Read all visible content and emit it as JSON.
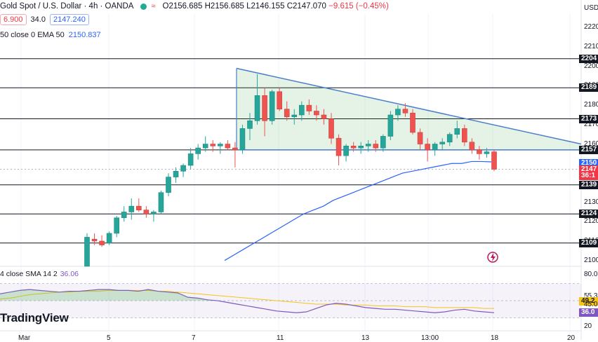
{
  "header": {
    "symbol": "Gold Spot / U.S. Dollar · 4h · OANDA",
    "open": "O2156.685",
    "high": "H2156.685",
    "low": "L2146.155",
    "close": "C2147.070",
    "change": "−9.615 (−0.45%)"
  },
  "quote": {
    "bid": "6.900",
    "spread": "34.0",
    "ask": "2147.240"
  },
  "ema": {
    "label": "50 close 0 EMA 50",
    "value": "2150.837"
  },
  "rsi": {
    "label": "4 close SMA 14 2",
    "value": "36.06"
  },
  "logo": "TradingView",
  "colors": {
    "up": "#26a69a",
    "down": "#ef5350",
    "ema": "#2962ff",
    "triangle": "#4a7fc9",
    "rsi": "#7e57c2",
    "rsi_ma": "#f5c518"
  },
  "price_axis": {
    "ticks": [
      "2220",
      "2210",
      "2200",
      "2190",
      "2180",
      "2170",
      "2160",
      "2130",
      "2120",
      "2110",
      "2100"
    ],
    "currency": "USD",
    "level_tags": [
      "2204",
      "2189",
      "2173",
      "2157",
      "2150",
      "2147",
      "36:1",
      "2139",
      "2124",
      "2109"
    ]
  },
  "rsi_axis": {
    "ticks": [
      "80.0",
      "55.3",
      "49.2",
      "45.0",
      "36.0",
      "20"
    ]
  },
  "time_axis": {
    "labels": [
      "Mar",
      "5",
      "7",
      "11",
      "13",
      "13:00",
      "18",
      "20"
    ]
  },
  "chart_data": {
    "type": "candlestick",
    "title": "Gold Spot / U.S. Dollar · 4h · OANDA",
    "ylim": [
      2097,
      2227
    ],
    "horizontal_levels": [
      2204,
      2189,
      2173,
      2157,
      2139,
      2124,
      2109
    ],
    "candles": [
      {
        "o": 2097,
        "h": 2114,
        "l": 2097,
        "c": 2112
      },
      {
        "o": 2111,
        "h": 2114,
        "l": 2108,
        "c": 2110
      },
      {
        "o": 2110,
        "h": 2113,
        "l": 2107,
        "c": 2108
      },
      {
        "o": 2109,
        "h": 2115,
        "l": 2108,
        "c": 2114
      },
      {
        "o": 2114,
        "h": 2123,
        "l": 2112,
        "c": 2122
      },
      {
        "o": 2122,
        "h": 2128,
        "l": 2120,
        "c": 2125
      },
      {
        "o": 2125,
        "h": 2132,
        "l": 2121,
        "c": 2128
      },
      {
        "o": 2128,
        "h": 2132,
        "l": 2125,
        "c": 2126
      },
      {
        "o": 2126,
        "h": 2128,
        "l": 2122,
        "c": 2124
      },
      {
        "o": 2124,
        "h": 2126,
        "l": 2120,
        "c": 2125
      },
      {
        "o": 2125,
        "h": 2136,
        "l": 2124,
        "c": 2135
      },
      {
        "o": 2135,
        "h": 2145,
        "l": 2133,
        "c": 2143
      },
      {
        "o": 2143,
        "h": 2148,
        "l": 2140,
        "c": 2146
      },
      {
        "o": 2146,
        "h": 2150,
        "l": 2143,
        "c": 2149
      },
      {
        "o": 2149,
        "h": 2158,
        "l": 2147,
        "c": 2155
      },
      {
        "o": 2155,
        "h": 2160,
        "l": 2152,
        "c": 2158
      },
      {
        "o": 2158,
        "h": 2164,
        "l": 2156,
        "c": 2160
      },
      {
        "o": 2160,
        "h": 2162,
        "l": 2156,
        "c": 2159
      },
      {
        "o": 2159,
        "h": 2161,
        "l": 2155,
        "c": 2160
      },
      {
        "o": 2160,
        "h": 2162,
        "l": 2157,
        "c": 2158
      },
      {
        "o": 2158,
        "h": 2161,
        "l": 2148,
        "c": 2157
      },
      {
        "o": 2157,
        "h": 2170,
        "l": 2155,
        "c": 2168
      },
      {
        "o": 2168,
        "h": 2176,
        "l": 2162,
        "c": 2172
      },
      {
        "o": 2172,
        "h": 2196,
        "l": 2170,
        "c": 2185
      },
      {
        "o": 2185,
        "h": 2189,
        "l": 2164,
        "c": 2172
      },
      {
        "o": 2172,
        "h": 2188,
        "l": 2170,
        "c": 2187
      },
      {
        "o": 2187,
        "h": 2189,
        "l": 2177,
        "c": 2178
      },
      {
        "o": 2178,
        "h": 2182,
        "l": 2172,
        "c": 2174
      },
      {
        "o": 2174,
        "h": 2178,
        "l": 2170,
        "c": 2175
      },
      {
        "o": 2175,
        "h": 2182,
        "l": 2172,
        "c": 2180
      },
      {
        "o": 2180,
        "h": 2183,
        "l": 2175,
        "c": 2177
      },
      {
        "o": 2177,
        "h": 2180,
        "l": 2172,
        "c": 2175
      },
      {
        "o": 2175,
        "h": 2178,
        "l": 2170,
        "c": 2173
      },
      {
        "o": 2173,
        "h": 2176,
        "l": 2160,
        "c": 2163
      },
      {
        "o": 2163,
        "h": 2165,
        "l": 2149,
        "c": 2154
      },
      {
        "o": 2154,
        "h": 2160,
        "l": 2151,
        "c": 2159
      },
      {
        "o": 2159,
        "h": 2161,
        "l": 2156,
        "c": 2158
      },
      {
        "o": 2158,
        "h": 2161,
        "l": 2155,
        "c": 2159
      },
      {
        "o": 2159,
        "h": 2162,
        "l": 2156,
        "c": 2160
      },
      {
        "o": 2160,
        "h": 2162,
        "l": 2156,
        "c": 2158
      },
      {
        "o": 2158,
        "h": 2165,
        "l": 2156,
        "c": 2164
      },
      {
        "o": 2164,
        "h": 2177,
        "l": 2162,
        "c": 2175
      },
      {
        "o": 2175,
        "h": 2180,
        "l": 2172,
        "c": 2178
      },
      {
        "o": 2178,
        "h": 2181,
        "l": 2174,
        "c": 2176
      },
      {
        "o": 2176,
        "h": 2178,
        "l": 2165,
        "c": 2166
      },
      {
        "o": 2166,
        "h": 2168,
        "l": 2157,
        "c": 2160
      },
      {
        "o": 2160,
        "h": 2163,
        "l": 2151,
        "c": 2157
      },
      {
        "o": 2157,
        "h": 2161,
        "l": 2154,
        "c": 2160
      },
      {
        "o": 2160,
        "h": 2163,
        "l": 2157,
        "c": 2161
      },
      {
        "o": 2161,
        "h": 2166,
        "l": 2159,
        "c": 2165
      },
      {
        "o": 2165,
        "h": 2172,
        "l": 2163,
        "c": 2168
      },
      {
        "o": 2168,
        "h": 2170,
        "l": 2159,
        "c": 2161
      },
      {
        "o": 2161,
        "h": 2163,
        "l": 2155,
        "c": 2157
      },
      {
        "o": 2157,
        "h": 2159,
        "l": 2152,
        "c": 2155
      },
      {
        "o": 2155,
        "h": 2158,
        "l": 2153,
        "c": 2156
      },
      {
        "o": 2156,
        "h": 2157,
        "l": 2146,
        "c": 2147
      }
    ],
    "ema50": [
      2100,
      2103,
      2106,
      2109,
      2112,
      2115,
      2118,
      2121,
      2124,
      2126,
      2128,
      2131,
      2133,
      2135,
      2137,
      2139,
      2141,
      2143,
      2145,
      2146,
      2147,
      2148,
      2149,
      2150,
      2150,
      2151,
      2151,
      2150.8
    ],
    "triangle": {
      "apex_top": 2199,
      "upper_end": 2160,
      "base": 2157
    },
    "rsi": [
      58,
      60,
      62,
      63,
      62,
      61,
      60,
      61,
      61,
      62,
      63,
      63,
      62,
      62,
      61,
      63,
      61,
      60,
      59,
      54,
      53,
      51,
      50,
      48,
      46,
      44,
      42,
      40,
      38,
      37,
      36,
      37,
      41,
      45,
      47,
      46,
      44,
      42,
      41,
      40,
      40,
      39,
      38,
      37,
      36,
      37,
      39,
      40,
      38,
      37,
      36.06
    ],
    "rsi_ma": [
      52,
      53,
      55,
      57,
      58,
      59,
      60,
      60,
      61,
      61,
      61,
      62,
      62,
      62,
      62,
      62,
      61,
      61,
      60,
      59,
      58,
      57,
      56,
      55,
      54,
      53,
      52,
      51,
      50,
      49,
      48,
      47,
      46,
      46,
      46,
      45,
      45,
      45,
      44,
      44,
      44,
      43,
      43,
      43,
      42,
      42,
      42,
      42,
      42,
      41,
      41
    ],
    "rsi_ylim": [
      15,
      90
    ]
  }
}
